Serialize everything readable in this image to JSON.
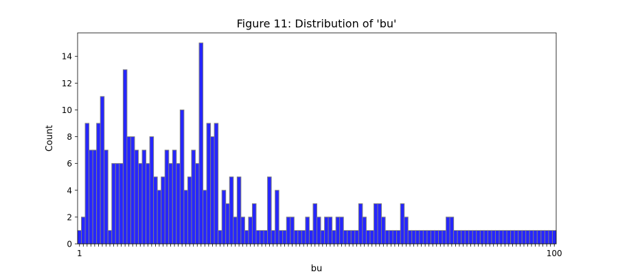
{
  "chart_data": {
    "type": "bar",
    "title": "Figure 11: Distribution of 'bu'",
    "xlabel": "bu",
    "ylabel": "Count",
    "ylim": [
      0,
      15.75
    ],
    "yticks": [
      0,
      2,
      4,
      6,
      8,
      10,
      12,
      14
    ],
    "xtick_labels_legible": [
      "1",
      "100"
    ],
    "values": [
      1,
      2,
      9,
      7,
      7,
      9,
      11,
      7,
      1,
      6,
      6,
      6,
      13,
      8,
      8,
      7,
      6,
      7,
      6,
      8,
      5,
      4,
      5,
      7,
      6,
      7,
      6,
      10,
      4,
      5,
      7,
      6,
      15,
      4,
      9,
      8,
      9,
      1,
      4,
      3,
      5,
      2,
      5,
      2,
      1,
      2,
      3,
      1,
      1,
      1,
      5,
      1,
      4,
      1,
      1,
      2,
      2,
      1,
      1,
      1,
      2,
      1,
      3,
      2,
      1,
      2,
      2,
      1,
      2,
      2,
      1,
      1,
      1,
      1,
      3,
      2,
      1,
      1,
      3,
      3,
      2,
      1,
      1,
      1,
      1,
      3,
      2,
      1,
      1,
      1,
      1,
      1,
      1,
      1,
      1,
      1,
      1,
      2,
      2,
      1,
      1,
      1,
      1,
      1,
      1,
      1,
      1,
      1,
      1,
      1,
      1,
      1,
      1,
      1,
      1,
      1,
      1,
      1,
      1,
      1,
      1,
      1,
      1,
      1,
      1,
      1
    ],
    "bar_color": "#0000ff",
    "bar_edge_color": "#7f7f7f",
    "grid": false,
    "legend": "none"
  }
}
